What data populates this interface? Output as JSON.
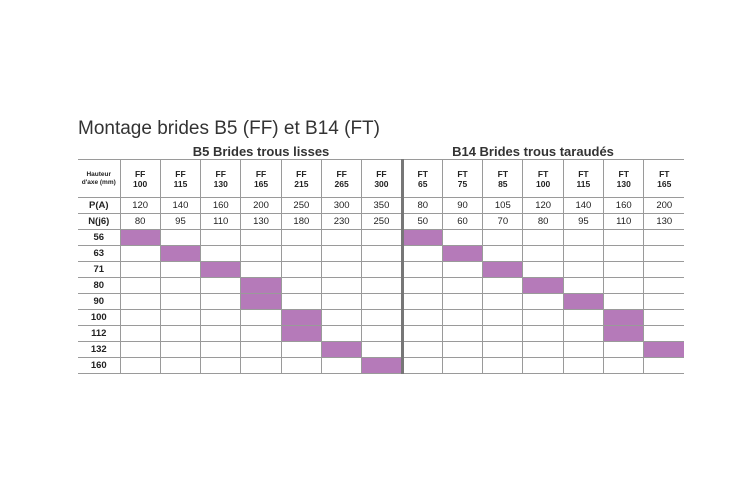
{
  "title": "Montage brides B5 (FF) et B14 (FT)",
  "groups": [
    {
      "label": "B5 Brides trous lisses"
    },
    {
      "label": "B14 Brides trous taraudés"
    }
  ],
  "header_label": [
    "Hauteur",
    "d'axe (mm)"
  ],
  "columns": [
    {
      "prefix": "FF",
      "size": "100",
      "P": "120",
      "N": "80"
    },
    {
      "prefix": "FF",
      "size": "115",
      "P": "140",
      "N": "95"
    },
    {
      "prefix": "FF",
      "size": "130",
      "P": "160",
      "N": "110"
    },
    {
      "prefix": "FF",
      "size": "165",
      "P": "200",
      "N": "130"
    },
    {
      "prefix": "FF",
      "size": "215",
      "P": "250",
      "N": "180"
    },
    {
      "prefix": "FF",
      "size": "265",
      "P": "300",
      "N": "230"
    },
    {
      "prefix": "FF",
      "size": "300",
      "P": "350",
      "N": "250"
    },
    {
      "prefix": "FT",
      "size": "65",
      "P": "80",
      "N": "50"
    },
    {
      "prefix": "FT",
      "size": "75",
      "P": "90",
      "N": "60"
    },
    {
      "prefix": "FT",
      "size": "85",
      "P": "105",
      "N": "70"
    },
    {
      "prefix": "FT",
      "size": "100",
      "P": "120",
      "N": "80"
    },
    {
      "prefix": "FT",
      "size": "115",
      "P": "140",
      "N": "95"
    },
    {
      "prefix": "FT",
      "size": "130",
      "P": "160",
      "N": "110"
    },
    {
      "prefix": "FT",
      "size": "165",
      "P": "200",
      "N": "130"
    }
  ],
  "row_P_label": "P(A)",
  "row_N_label": "N(j6)",
  "heights": [
    {
      "label": "56",
      "ff": [
        100
      ],
      "ft": [
        65
      ]
    },
    {
      "label": "63",
      "ff": [
        115
      ],
      "ft": [
        75
      ]
    },
    {
      "label": "71",
      "ff": [
        130
      ],
      "ft": [
        85
      ]
    },
    {
      "label": "80",
      "ff": [
        165
      ],
      "ft": [
        100
      ]
    },
    {
      "label": "90",
      "ff": [
        165
      ],
      "ft": [
        115
      ]
    },
    {
      "label": "100",
      "ff": [
        215
      ],
      "ft": [
        130
      ]
    },
    {
      "label": "112",
      "ff": [
        215
      ],
      "ft": [
        130
      ]
    },
    {
      "label": "132",
      "ff": [
        265
      ],
      "ft": [
        165
      ]
    },
    {
      "label": "160",
      "ff": [
        300
      ],
      "ft": []
    }
  ],
  "highlight_color": "#b57ab9"
}
